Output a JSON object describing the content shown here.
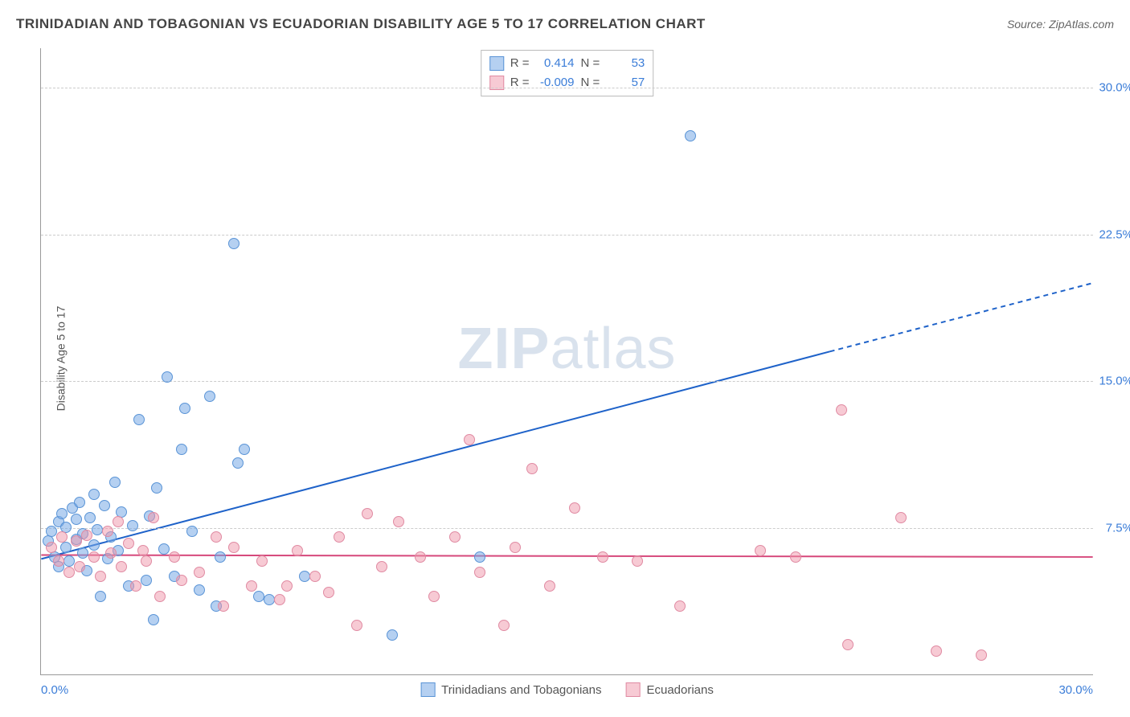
{
  "header": {
    "title": "TRINIDADIAN AND TOBAGONIAN VS ECUADORIAN DISABILITY AGE 5 TO 17 CORRELATION CHART",
    "source": "Source: ZipAtlas.com"
  },
  "axes": {
    "y_label": "Disability Age 5 to 17",
    "x_min": 0.0,
    "x_max": 30.0,
    "y_min": 0.0,
    "y_max": 32.0,
    "y_ticks": [
      7.5,
      15.0,
      22.5,
      30.0
    ],
    "y_tick_labels": [
      "7.5%",
      "15.0%",
      "22.5%",
      "30.0%"
    ],
    "x_tick_left": "0.0%",
    "x_tick_right": "30.0%"
  },
  "colors": {
    "series1_fill": "rgba(120,170,230,0.55)",
    "series1_stroke": "#5a94d6",
    "series2_fill": "rgba(240,150,170,0.5)",
    "series2_stroke": "#e08aa2",
    "trend1": "#1e62c9",
    "trend2": "#d6487b",
    "grid": "#cccccc",
    "axis": "#999999",
    "tick_text": "#3b7dd8"
  },
  "marker": {
    "radius": 7,
    "stroke_width": 1
  },
  "stats_legend": {
    "rows": [
      {
        "swatch_fill": "rgba(120,170,230,0.55)",
        "swatch_stroke": "#5a94d6",
        "r_label": "R =",
        "r_value": "0.414",
        "n_label": "N =",
        "n_value": "53"
      },
      {
        "swatch_fill": "rgba(240,150,170,0.5)",
        "swatch_stroke": "#e08aa2",
        "r_label": "R =",
        "r_value": "-0.009",
        "n_label": "N =",
        "n_value": "57"
      }
    ]
  },
  "bottom_legend": {
    "items": [
      {
        "swatch_fill": "rgba(120,170,230,0.55)",
        "swatch_stroke": "#5a94d6",
        "label": "Trinidadians and Tobagonians"
      },
      {
        "swatch_fill": "rgba(240,150,170,0.5)",
        "swatch_stroke": "#e08aa2",
        "label": "Ecuadorians"
      }
    ]
  },
  "watermark": {
    "bold": "ZIP",
    "rest": "atlas"
  },
  "trend_lines": {
    "series1": {
      "x1": 0,
      "y1": 5.9,
      "x2_solid": 22.5,
      "y2_solid": 16.5,
      "x2_dash": 30,
      "y2_dash": 20.0,
      "color": "#1e62c9",
      "width": 2
    },
    "series2": {
      "x1": 0,
      "y1": 6.1,
      "x2": 30,
      "y2": 6.0,
      "color": "#d6487b",
      "width": 2
    }
  },
  "series": [
    {
      "name": "Trinidadians and Tobagonians",
      "color_fill": "rgba(120,170,230,0.55)",
      "color_stroke": "#5a94d6",
      "points": [
        [
          0.2,
          6.8
        ],
        [
          0.3,
          7.3
        ],
        [
          0.4,
          6.0
        ],
        [
          0.5,
          7.8
        ],
        [
          0.5,
          5.5
        ],
        [
          0.6,
          8.2
        ],
        [
          0.7,
          6.5
        ],
        [
          0.7,
          7.5
        ],
        [
          0.8,
          5.8
        ],
        [
          0.9,
          8.5
        ],
        [
          1.0,
          6.9
        ],
        [
          1.0,
          7.9
        ],
        [
          1.1,
          8.8
        ],
        [
          1.2,
          6.2
        ],
        [
          1.2,
          7.2
        ],
        [
          1.3,
          5.3
        ],
        [
          1.4,
          8.0
        ],
        [
          1.5,
          6.6
        ],
        [
          1.5,
          9.2
        ],
        [
          1.6,
          7.4
        ],
        [
          1.7,
          4.0
        ],
        [
          1.8,
          8.6
        ],
        [
          1.9,
          5.9
        ],
        [
          2.0,
          7.0
        ],
        [
          2.1,
          9.8
        ],
        [
          2.2,
          6.3
        ],
        [
          2.3,
          8.3
        ],
        [
          2.5,
          4.5
        ],
        [
          2.6,
          7.6
        ],
        [
          2.8,
          13.0
        ],
        [
          3.0,
          4.8
        ],
        [
          3.1,
          8.1
        ],
        [
          3.2,
          2.8
        ],
        [
          3.3,
          9.5
        ],
        [
          3.5,
          6.4
        ],
        [
          3.6,
          15.2
        ],
        [
          3.8,
          5.0
        ],
        [
          4.0,
          11.5
        ],
        [
          4.1,
          13.6
        ],
        [
          4.3,
          7.3
        ],
        [
          4.5,
          4.3
        ],
        [
          4.8,
          14.2
        ],
        [
          5.0,
          3.5
        ],
        [
          5.1,
          6.0
        ],
        [
          5.5,
          22.0
        ],
        [
          5.6,
          10.8
        ],
        [
          5.8,
          11.5
        ],
        [
          6.2,
          4.0
        ],
        [
          6.5,
          3.8
        ],
        [
          7.5,
          5.0
        ],
        [
          10.0,
          2.0
        ],
        [
          12.5,
          6.0
        ],
        [
          18.5,
          27.5
        ]
      ]
    },
    {
      "name": "Ecuadorians",
      "color_fill": "rgba(240,150,170,0.5)",
      "color_stroke": "#e08aa2",
      "points": [
        [
          0.3,
          6.5
        ],
        [
          0.5,
          5.8
        ],
        [
          0.6,
          7.0
        ],
        [
          0.8,
          5.2
        ],
        [
          1.0,
          6.8
        ],
        [
          1.1,
          5.5
        ],
        [
          1.3,
          7.1
        ],
        [
          1.5,
          6.0
        ],
        [
          1.7,
          5.0
        ],
        [
          1.9,
          7.3
        ],
        [
          2.0,
          6.2
        ],
        [
          2.2,
          7.8
        ],
        [
          2.3,
          5.5
        ],
        [
          2.5,
          6.7
        ],
        [
          2.7,
          4.5
        ],
        [
          2.9,
          6.3
        ],
        [
          3.0,
          5.8
        ],
        [
          3.2,
          8.0
        ],
        [
          3.4,
          4.0
        ],
        [
          3.8,
          6.0
        ],
        [
          4.0,
          4.8
        ],
        [
          4.5,
          5.2
        ],
        [
          5.0,
          7.0
        ],
        [
          5.2,
          3.5
        ],
        [
          5.5,
          6.5
        ],
        [
          6.0,
          4.5
        ],
        [
          6.3,
          5.8
        ],
        [
          6.8,
          3.8
        ],
        [
          7.0,
          4.5
        ],
        [
          7.3,
          6.3
        ],
        [
          7.8,
          5.0
        ],
        [
          8.2,
          4.2
        ],
        [
          8.5,
          7.0
        ],
        [
          9.0,
          2.5
        ],
        [
          9.3,
          8.2
        ],
        [
          9.7,
          5.5
        ],
        [
          10.2,
          7.8
        ],
        [
          10.8,
          6.0
        ],
        [
          11.2,
          4.0
        ],
        [
          11.8,
          7.0
        ],
        [
          12.2,
          12.0
        ],
        [
          12.5,
          5.2
        ],
        [
          13.2,
          2.5
        ],
        [
          13.5,
          6.5
        ],
        [
          14.0,
          10.5
        ],
        [
          14.5,
          4.5
        ],
        [
          15.2,
          8.5
        ],
        [
          16.0,
          6.0
        ],
        [
          17.0,
          5.8
        ],
        [
          18.2,
          3.5
        ],
        [
          20.5,
          6.3
        ],
        [
          21.5,
          6.0
        ],
        [
          22.8,
          13.5
        ],
        [
          23.0,
          1.5
        ],
        [
          24.5,
          8.0
        ],
        [
          25.5,
          1.2
        ],
        [
          26.8,
          1.0
        ]
      ]
    }
  ]
}
